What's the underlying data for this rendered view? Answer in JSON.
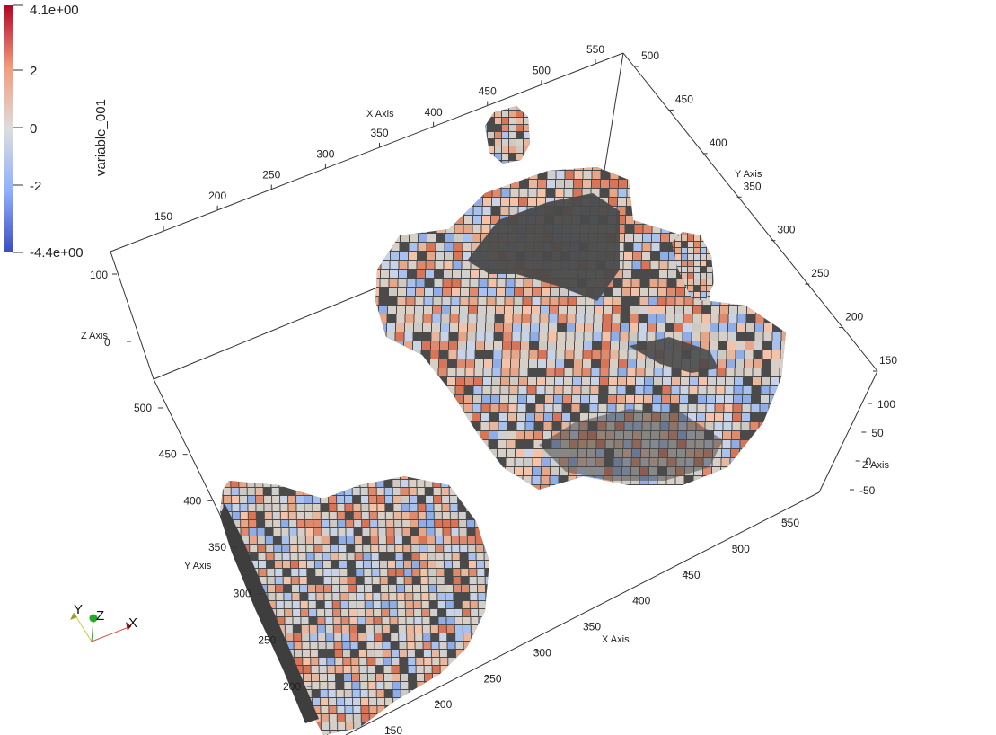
{
  "scalar_bar": {
    "title": "variable_001",
    "max_label": "4.1e+00",
    "min_label": "-4.4e+00",
    "tick_labels": [
      "2",
      "0",
      "-2"
    ],
    "colors": {
      "max": "#b40426",
      "mid": "#dddddd",
      "min": "#3b4cc0"
    }
  },
  "back_grid": {
    "x_axis_title": "X Axis",
    "x_ticks": [
      "150",
      "200",
      "250",
      "300",
      "350",
      "400",
      "450",
      "500",
      "550"
    ],
    "y_axis_title": "Y Axis",
    "y_ticks": [
      "500",
      "450",
      "400",
      "350",
      "300",
      "250",
      "200",
      "150"
    ],
    "z_axis_title": "Z Axis",
    "z_ticks": [
      "100",
      "0"
    ]
  },
  "front_grid": {
    "x_axis_title": "X Axis",
    "x_ticks": [
      "150",
      "200",
      "250",
      "300",
      "350",
      "400",
      "450",
      "500",
      "550"
    ],
    "y_axis_title": "Y Axis",
    "y_ticks": [
      "500",
      "450",
      "400",
      "350",
      "300",
      "250",
      "200"
    ],
    "z_axis_title": "Z Axis",
    "z_ticks": [
      "100",
      "50",
      "0",
      "-50"
    ]
  },
  "orientation": {
    "x_label": "X",
    "y_label": "Y",
    "z_label": "Z",
    "x_color": "#8b1a1a",
    "y_color": "#cccc33",
    "z_color": "#22aa22"
  },
  "surface_colors": {
    "shadow": "#4a4a4a",
    "voxel_neutral": "#d9cfc6"
  }
}
